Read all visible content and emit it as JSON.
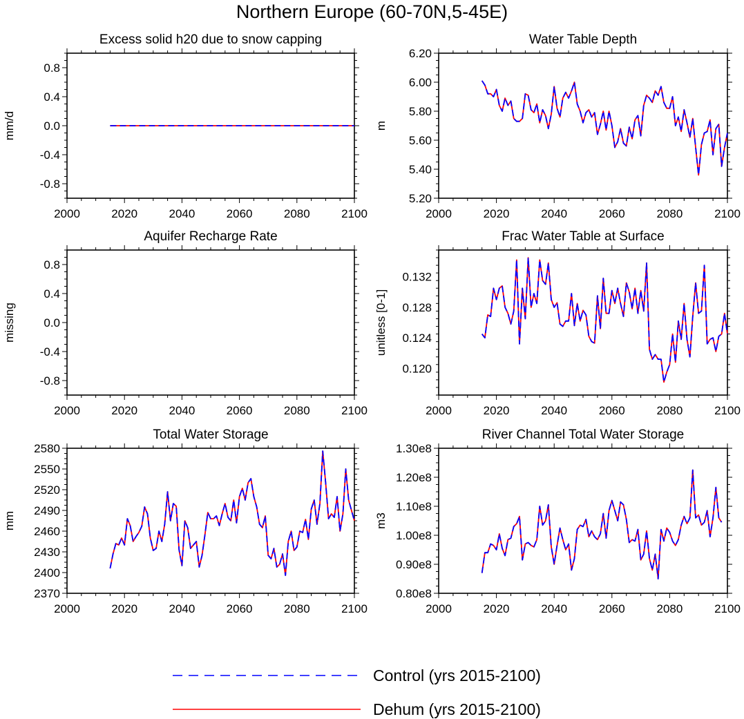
{
  "title": "Northern Europe (60-70N,5-45E)",
  "legend": [
    {
      "label": "Control (yrs 2015-2100)",
      "color": "#0000ff",
      "style": "dashed"
    },
    {
      "label": "Dehum (yrs 2015-2100)",
      "color": "#ff0000",
      "style": "solid"
    }
  ],
  "chart_data": [
    {
      "type": "line",
      "title": "Excess solid h20 due to snow capping",
      "ylabel": "mm/d",
      "xlim": [
        2000,
        2100
      ],
      "ylim": [
        -1.0,
        1.0
      ],
      "xticks": [
        2000,
        2020,
        2040,
        2060,
        2080,
        2100
      ],
      "yticks": [
        -0.8,
        -0.4,
        0.0,
        0.4,
        0.8
      ],
      "ytick_labels": [
        "-0.8",
        "-0.4",
        "0.0",
        "0.4",
        "0.8"
      ],
      "x": [
        2015,
        2100
      ],
      "series": [
        {
          "name": "Control (yrs 2015-2100)",
          "values": [
            0.0,
            0.0
          ]
        },
        {
          "name": "Dehum (yrs 2015-2100)",
          "values": [
            0.0,
            0.0
          ]
        }
      ]
    },
    {
      "type": "line",
      "title": "Water Table Depth",
      "ylabel": "m",
      "xlim": [
        2000,
        2100
      ],
      "ylim": [
        5.2,
        6.2
      ],
      "xticks": [
        2000,
        2020,
        2040,
        2060,
        2080,
        2100
      ],
      "yticks": [
        5.2,
        5.4,
        5.6,
        5.8,
        6.0,
        6.2
      ],
      "ytick_labels": [
        "5.20",
        "5.40",
        "5.60",
        "5.80",
        "6.00",
        "6.20"
      ],
      "x_start": 2015,
      "series": [
        {
          "name": "Control (yrs 2015-2100)",
          "values": [
            6.01,
            5.98,
            5.92,
            5.92,
            5.9,
            5.95,
            5.84,
            5.8,
            5.89,
            5.84,
            5.87,
            5.75,
            5.73,
            5.73,
            5.75,
            5.92,
            5.91,
            5.81,
            5.79,
            5.85,
            5.72,
            5.81,
            5.77,
            5.68,
            5.78,
            5.97,
            5.82,
            5.76,
            5.89,
            5.93,
            5.89,
            5.94,
            6.0,
            5.85,
            5.8,
            5.72,
            5.79,
            5.81,
            5.76,
            5.79,
            5.64,
            5.71,
            5.8,
            5.67,
            5.8,
            5.7,
            5.55,
            5.59,
            5.68,
            5.58,
            5.56,
            5.69,
            5.61,
            5.74,
            5.77,
            5.63,
            5.84,
            5.91,
            5.89,
            5.86,
            5.94,
            5.91,
            5.97,
            5.86,
            5.82,
            5.82,
            5.9,
            5.7,
            5.76,
            5.66,
            5.81,
            5.72,
            5.62,
            5.75,
            5.55,
            5.36,
            5.57,
            5.65,
            5.66,
            5.74,
            5.5,
            5.68,
            5.71,
            5.42,
            5.55,
            5.65
          ]
        },
        {
          "name": "Dehum (yrs 2015-2100)",
          "values": [
            6.01,
            5.98,
            5.92,
            5.92,
            5.9,
            5.95,
            5.84,
            5.8,
            5.89,
            5.84,
            5.87,
            5.75,
            5.73,
            5.73,
            5.75,
            5.92,
            5.91,
            5.81,
            5.79,
            5.85,
            5.72,
            5.81,
            5.77,
            5.68,
            5.78,
            5.97,
            5.82,
            5.76,
            5.89,
            5.93,
            5.89,
            5.94,
            6.0,
            5.85,
            5.8,
            5.72,
            5.79,
            5.81,
            5.76,
            5.79,
            5.64,
            5.71,
            5.8,
            5.67,
            5.8,
            5.7,
            5.55,
            5.59,
            5.68,
            5.58,
            5.56,
            5.69,
            5.61,
            5.74,
            5.77,
            5.63,
            5.84,
            5.91,
            5.89,
            5.86,
            5.94,
            5.91,
            5.97,
            5.86,
            5.82,
            5.82,
            5.9,
            5.7,
            5.76,
            5.66,
            5.81,
            5.72,
            5.62,
            5.75,
            5.55,
            5.36,
            5.57,
            5.65,
            5.66,
            5.74,
            5.5,
            5.68,
            5.71,
            5.42,
            5.55,
            5.65
          ]
        }
      ]
    },
    {
      "type": "line",
      "title": "Aquifer Recharge Rate",
      "ylabel": "missing",
      "xlim": [
        2000,
        2100
      ],
      "ylim": [
        -1.0,
        1.0
      ],
      "xticks": [
        2000,
        2020,
        2040,
        2060,
        2080,
        2100
      ],
      "yticks": [
        -0.8,
        -0.4,
        0.0,
        0.4,
        0.8
      ],
      "ytick_labels": [
        "-0.8",
        "-0.4",
        "0.0",
        "0.4",
        "0.8"
      ],
      "series": []
    },
    {
      "type": "line",
      "title": "Frac Water Table at Surface",
      "ylabel": "unitless [0-1]",
      "xlim": [
        2000,
        2100
      ],
      "ylim": [
        0.1165,
        0.1355
      ],
      "xticks": [
        2000,
        2020,
        2040,
        2060,
        2080,
        2100
      ],
      "yticks": [
        0.12,
        0.124,
        0.128,
        0.132
      ],
      "ytick_labels": [
        "0.120",
        "0.124",
        "0.128",
        "0.132"
      ],
      "x_start": 2015,
      "series": [
        {
          "name": "Control (yrs 2015-2100)",
          "values": [
            0.1245,
            0.124,
            0.127,
            0.1268,
            0.1305,
            0.129,
            0.1305,
            0.1308,
            0.128,
            0.1272,
            0.1258,
            0.1275,
            0.1342,
            0.1232,
            0.1305,
            0.1265,
            0.1345,
            0.128,
            0.1298,
            0.1285,
            0.1342,
            0.1315,
            0.131,
            0.1338,
            0.129,
            0.128,
            0.1286,
            0.1258,
            0.1255,
            0.1262,
            0.1262,
            0.1298,
            0.1256,
            0.1285,
            0.1262,
            0.1276,
            0.127,
            0.1242,
            0.1235,
            0.1233,
            0.1295,
            0.1252,
            0.1318,
            0.1272,
            0.1272,
            0.1302,
            0.1285,
            0.1305,
            0.1285,
            0.1268,
            0.1312,
            0.13,
            0.1278,
            0.1305,
            0.1272,
            0.1302,
            0.1275,
            0.1338,
            0.1225,
            0.1212,
            0.1218,
            0.1212,
            0.1212,
            0.1182,
            0.1195,
            0.1205,
            0.1245,
            0.1208,
            0.1262,
            0.1238,
            0.1285,
            0.1238,
            0.1215,
            0.1268,
            0.1312,
            0.1272,
            0.1275,
            0.1335,
            0.1232,
            0.1238,
            0.124,
            0.1222,
            0.1242,
            0.1245,
            0.1272,
            0.1245
          ]
        },
        {
          "name": "Dehum (yrs 2015-2100)",
          "values": [
            0.1245,
            0.124,
            0.127,
            0.1268,
            0.1305,
            0.129,
            0.1305,
            0.1308,
            0.128,
            0.1272,
            0.1258,
            0.1275,
            0.1342,
            0.1232,
            0.1305,
            0.1265,
            0.1345,
            0.128,
            0.1298,
            0.1285,
            0.1342,
            0.1315,
            0.131,
            0.1338,
            0.129,
            0.128,
            0.1286,
            0.1258,
            0.1255,
            0.1262,
            0.1262,
            0.1298,
            0.1256,
            0.1285,
            0.1262,
            0.1276,
            0.127,
            0.1242,
            0.1235,
            0.1233,
            0.1295,
            0.1252,
            0.1318,
            0.1272,
            0.1272,
            0.1302,
            0.1285,
            0.1305,
            0.1285,
            0.1268,
            0.1312,
            0.13,
            0.1278,
            0.1305,
            0.1272,
            0.1302,
            0.1275,
            0.1338,
            0.1225,
            0.1212,
            0.1218,
            0.1212,
            0.1212,
            0.1182,
            0.1195,
            0.1205,
            0.1245,
            0.1208,
            0.1262,
            0.1238,
            0.1285,
            0.1238,
            0.1215,
            0.1268,
            0.1312,
            0.1272,
            0.1275,
            0.1335,
            0.1232,
            0.1238,
            0.124,
            0.1222,
            0.1242,
            0.1245,
            0.1272,
            0.1245
          ]
        }
      ]
    },
    {
      "type": "line",
      "title": "Total Water Storage",
      "ylabel": "mm",
      "xlim": [
        2000,
        2100
      ],
      "ylim": [
        2370,
        2580
      ],
      "xticks": [
        2000,
        2020,
        2040,
        2060,
        2080,
        2100
      ],
      "yticks": [
        2370,
        2400,
        2430,
        2460,
        2490,
        2520,
        2550,
        2580
      ],
      "ytick_labels": [
        "2370",
        "2400",
        "2430",
        "2460",
        "2490",
        "2520",
        "2550",
        "2580"
      ],
      "x_start": 2015,
      "series": [
        {
          "name": "Control (yrs 2015-2100)",
          "values": [
            2406,
            2427,
            2442,
            2440,
            2450,
            2440,
            2478,
            2468,
            2445,
            2452,
            2458,
            2467,
            2495,
            2485,
            2450,
            2432,
            2435,
            2460,
            2445,
            2470,
            2517,
            2475,
            2500,
            2496,
            2433,
            2410,
            2475,
            2465,
            2435,
            2440,
            2445,
            2408,
            2425,
            2455,
            2487,
            2478,
            2478,
            2482,
            2468,
            2485,
            2500,
            2480,
            2475,
            2505,
            2472,
            2510,
            2522,
            2505,
            2530,
            2536,
            2510,
            2495,
            2470,
            2465,
            2482,
            2425,
            2420,
            2435,
            2408,
            2412,
            2427,
            2396,
            2445,
            2460,
            2432,
            2437,
            2460,
            2458,
            2477,
            2448,
            2492,
            2505,
            2470,
            2500,
            2576,
            2530,
            2478,
            2485,
            2480,
            2510,
            2460,
            2485,
            2550,
            2505,
            2490,
            2475
          ]
        },
        {
          "name": "Dehum (yrs 2015-2100)",
          "values": [
            2406,
            2427,
            2442,
            2440,
            2450,
            2440,
            2478,
            2468,
            2445,
            2452,
            2458,
            2467,
            2495,
            2485,
            2450,
            2432,
            2435,
            2460,
            2445,
            2470,
            2517,
            2475,
            2500,
            2496,
            2433,
            2410,
            2475,
            2465,
            2435,
            2440,
            2445,
            2408,
            2425,
            2455,
            2487,
            2478,
            2478,
            2482,
            2468,
            2485,
            2500,
            2480,
            2475,
            2505,
            2472,
            2510,
            2522,
            2505,
            2530,
            2536,
            2510,
            2495,
            2470,
            2465,
            2482,
            2425,
            2420,
            2435,
            2408,
            2412,
            2427,
            2396,
            2445,
            2460,
            2432,
            2437,
            2460,
            2458,
            2477,
            2448,
            2492,
            2505,
            2470,
            2500,
            2576,
            2530,
            2478,
            2485,
            2480,
            2510,
            2460,
            2485,
            2550,
            2505,
            2490,
            2475
          ]
        }
      ]
    },
    {
      "type": "line",
      "title": "River Channel Total Water Storage",
      "ylabel": "m3",
      "xlim": [
        2000,
        2100
      ],
      "ylim": [
        80000000.0,
        130000000.0
      ],
      "xticks": [
        2000,
        2020,
        2040,
        2060,
        2080,
        2100
      ],
      "yticks": [
        80000000.0,
        90000000.0,
        100000000.0,
        110000000.0,
        120000000.0,
        130000000.0
      ],
      "ytick_labels": [
        "0.80e8",
        "0.90e8",
        "1.00e8",
        "1.10e8",
        "1.20e8",
        "1.30e8"
      ],
      "x_start": 2015,
      "series": [
        {
          "name": "Control (yrs 2015-2100)",
          "values": [
            87000000.0,
            94000000.0,
            94000000.0,
            97000000.0,
            96500000.0,
            95000000.0,
            100500000.0,
            95500000.0,
            93000000.0,
            98500000.0,
            99000000.0,
            103000000.0,
            104000000.0,
            106500000.0,
            91500000.0,
            97000000.0,
            97500000.0,
            96500000.0,
            96000000.0,
            98500000.0,
            110000000.0,
            103500000.0,
            105000000.0,
            110500000.0,
            96000000.0,
            90000000.0,
            96500000.0,
            102500000.0,
            98500000.0,
            95000000.0,
            97000000.0,
            88000000.0,
            92000000.0,
            102000000.0,
            103500000.0,
            103000000.0,
            105500000.0,
            99500000.0,
            101500000.0,
            99500000.0,
            98500000.0,
            100500000.0,
            107500000.0,
            99000000.0,
            108500000.0,
            112000000.0,
            108500000.0,
            105000000.0,
            111500000.0,
            110500000.0,
            105500000.0,
            97500000.0,
            98500000.0,
            98000000.0,
            102000000.0,
            91500000.0,
            93500000.0,
            101500000.0,
            92000000.0,
            88000000.0,
            93500000.0,
            85000000.0,
            102000000.0,
            98000000.0,
            102500000.0,
            101000000.0,
            98000000.0,
            96500000.0,
            98500000.0,
            103500000.0,
            106500000.0,
            104000000.0,
            106000000.0,
            122500000.0,
            106000000.0,
            107000000.0,
            103500000.0,
            104500000.0,
            108500000.0,
            99500000.0,
            106000000.0,
            116500000.0,
            106000000.0,
            104500000.0
          ]
        },
        {
          "name": "Dehum (yrs 2015-2100)",
          "values": [
            87000000.0,
            94000000.0,
            94000000.0,
            97000000.0,
            96500000.0,
            95000000.0,
            100500000.0,
            95500000.0,
            93000000.0,
            98500000.0,
            99000000.0,
            103000000.0,
            104000000.0,
            106500000.0,
            91500000.0,
            97000000.0,
            97500000.0,
            96500000.0,
            96000000.0,
            98500000.0,
            110000000.0,
            103500000.0,
            105000000.0,
            110500000.0,
            96000000.0,
            90000000.0,
            96500000.0,
            102500000.0,
            98500000.0,
            95000000.0,
            97000000.0,
            88000000.0,
            92000000.0,
            102000000.0,
            103500000.0,
            103000000.0,
            105500000.0,
            99500000.0,
            101500000.0,
            99500000.0,
            98500000.0,
            100500000.0,
            107500000.0,
            99000000.0,
            108500000.0,
            112000000.0,
            108500000.0,
            105000000.0,
            111500000.0,
            110500000.0,
            105500000.0,
            97500000.0,
            98500000.0,
            98000000.0,
            102000000.0,
            91500000.0,
            93500000.0,
            101500000.0,
            92000000.0,
            88000000.0,
            93500000.0,
            85000000.0,
            102000000.0,
            98000000.0,
            102500000.0,
            101000000.0,
            98000000.0,
            96500000.0,
            98500000.0,
            103500000.0,
            106500000.0,
            104000000.0,
            106000000.0,
            122500000.0,
            106000000.0,
            107000000.0,
            103500000.0,
            104500000.0,
            108500000.0,
            99500000.0,
            106000000.0,
            116500000.0,
            106000000.0,
            104500000.0
          ]
        }
      ]
    }
  ]
}
